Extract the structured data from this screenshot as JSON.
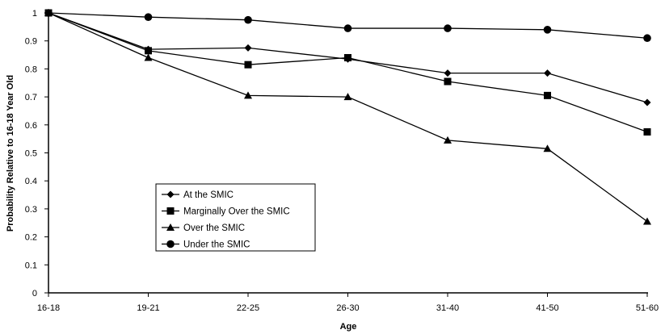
{
  "chart_data": {
    "type": "line",
    "categories": [
      "16-18",
      "19-21",
      "22-25",
      "26-30",
      "31-40",
      "41-50",
      "51-60"
    ],
    "xlabel": "Age",
    "ylabel": "Probability Relative to 16-18 Year Old",
    "ylim": [
      0,
      1
    ],
    "yticks": [
      "0",
      "0.1",
      "0.2",
      "0.3",
      "0.4",
      "0.5",
      "0.6",
      "0.7",
      "0.8",
      "0.9",
      "1"
    ],
    "grid": false,
    "legend_position": "lower-left",
    "series": [
      {
        "name": "At the SMIC",
        "marker": "diamond",
        "values": [
          1.0,
          0.87,
          0.875,
          0.835,
          0.785,
          0.785,
          0.68
        ]
      },
      {
        "name": "Marginally Over the SMIC",
        "marker": "square",
        "values": [
          1.0,
          0.865,
          0.815,
          0.84,
          0.755,
          0.705,
          0.575
        ]
      },
      {
        "name": "Over the SMIC",
        "marker": "triangle",
        "values": [
          1.0,
          0.84,
          0.705,
          0.7,
          0.545,
          0.515,
          0.255
        ]
      },
      {
        "name": "Under the SMIC",
        "marker": "circle",
        "values": [
          1.0,
          0.985,
          0.975,
          0.945,
          0.945,
          0.94,
          0.91
        ]
      }
    ],
    "colors": {
      "line": "#000000",
      "background": "#ffffff"
    }
  }
}
